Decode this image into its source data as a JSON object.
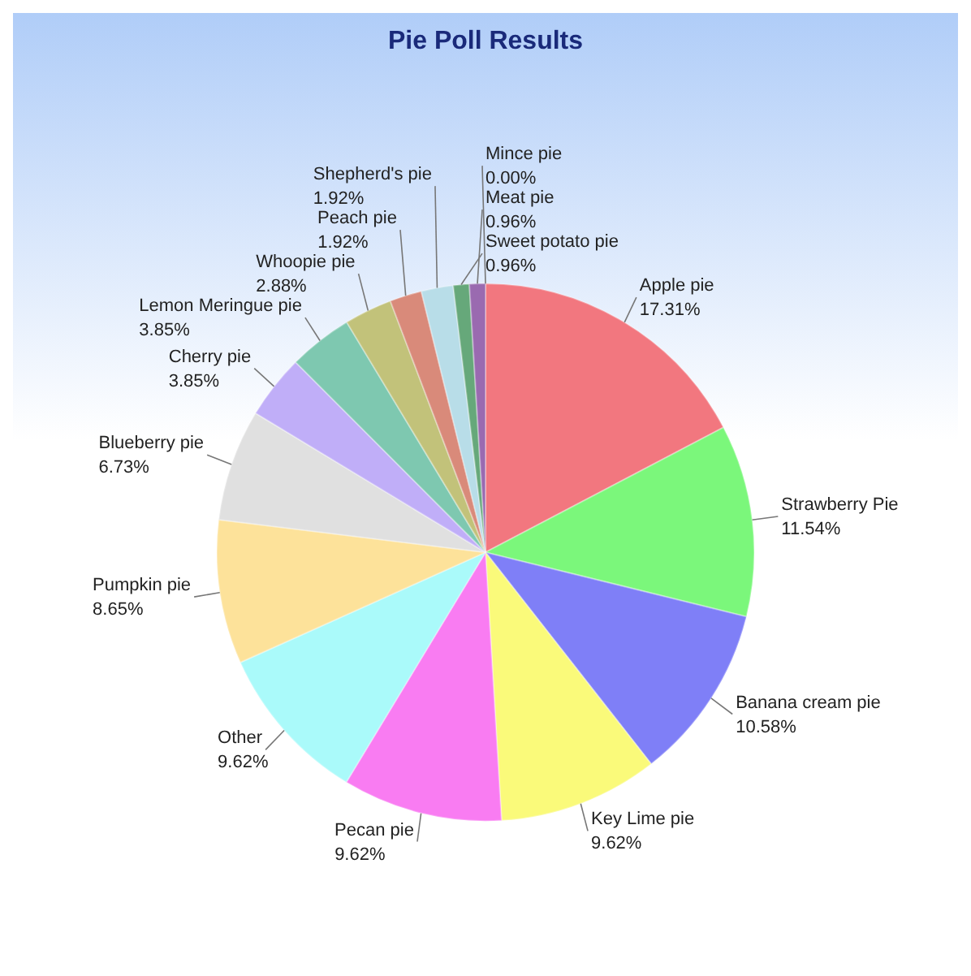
{
  "chart_data": {
    "type": "pie",
    "title": "Pie Poll Results",
    "categories": [
      "Apple pie",
      "Strawberry Pie",
      "Banana cream pie",
      "Key Lime pie",
      "Pecan pie",
      "Other",
      "Pumpkin pie",
      "Blueberry pie",
      "Cherry pie",
      "Lemon Meringue pie",
      "Whoopie pie",
      "Peach pie",
      "Shepherd's pie",
      "Sweet potato pie",
      "Meat pie",
      "Mince pie"
    ],
    "values": [
      17.31,
      11.54,
      10.58,
      9.62,
      9.62,
      9.62,
      8.65,
      6.73,
      3.85,
      3.85,
      2.88,
      1.92,
      1.92,
      0.96,
      0.96,
      0
    ],
    "value_labels": [
      "17.31%",
      "11.54%",
      "10.58%",
      "9.62%",
      "9.62%",
      "9.62%",
      "8.65%",
      "6.73%",
      "3.85%",
      "3.85%",
      "2.88%",
      "1.92%",
      "1.92%",
      "0.96%",
      "0.96%",
      "0.00%"
    ],
    "colors": [
      "#f2777f",
      "#7bf77b",
      "#7f7ff7",
      "#fafa7a",
      "#f97cf2",
      "#aafafa",
      "#fde29a",
      "#e0e0e0",
      "#c0aef8",
      "#7ec8b0",
      "#c2c27a",
      "#d98a7a",
      "#b8dde8",
      "#66a87a",
      "#9a6ab0",
      "#dd4444"
    ],
    "legend": false
  }
}
